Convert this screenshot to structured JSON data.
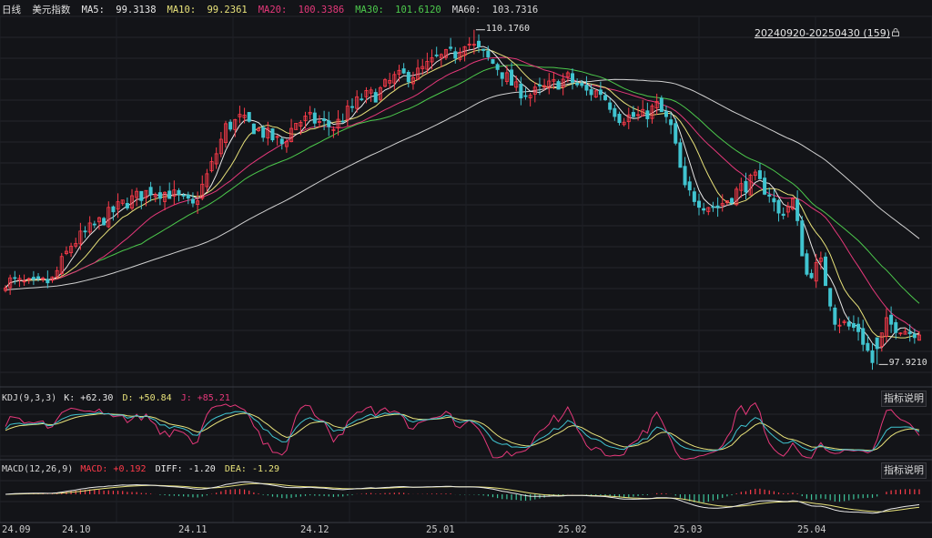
{
  "header": {
    "period": "日线",
    "symbol": "美元指数",
    "ma": [
      {
        "label": "MA5:",
        "value": "99.3138",
        "color": "#e8e8e8"
      },
      {
        "label": "MA10:",
        "value": "99.2361",
        "color": "#e8e27a"
      },
      {
        "label": "MA20:",
        "value": "100.3386",
        "color": "#e5387a"
      },
      {
        "label": "MA30:",
        "value": "101.6120",
        "color": "#4cc94c"
      },
      {
        "label": "MA60:",
        "value": "103.7316",
        "color": "#d8d8d8"
      }
    ],
    "range_label": "20240920-20250430 (159)"
  },
  "markers": {
    "high": "110.1760",
    "low": "97.9210"
  },
  "kdj": {
    "title": "KDJ(9,3,3)",
    "k_label": "K: +62.30",
    "d_label": "D: +50.84",
    "j_label": "J: +85.21",
    "button": "指标说明"
  },
  "macd": {
    "title": "MACD(12,26,9)",
    "macd_label": "MACD: +0.192",
    "diff_label": "DIFF: -1.20",
    "dea_label": "DEA: -1.29",
    "button": "指标说明"
  },
  "xaxis": [
    "24.09",
    "24.10",
    "24.11",
    "24.12",
    "25.01",
    "25.02",
    "25.03",
    "25.04"
  ],
  "chart_data": {
    "type": "candlestick",
    "count": 159,
    "high": 110.176,
    "low": 97.921,
    "last_ma": {
      "MA5": 99.3138,
      "MA10": 99.2361,
      "MA20": 100.3386,
      "MA30": 101.612,
      "MA60": 103.7316
    },
    "colors": {
      "up": "#ff3b4a",
      "down": "#40c4d0",
      "ma5": "#e8e8e8",
      "ma10": "#e8e27a",
      "ma20": "#e5387a",
      "ma30": "#4cc94c",
      "ma60": "#d0d0d0",
      "k": "#e8e8e8",
      "d": "#e8e27a",
      "j": "#e5387a",
      "diff": "#e8e8e8",
      "dea": "#e8e27a",
      "hist_up": "#ff3b4a",
      "hist_down": "#3dc49a"
    }
  }
}
